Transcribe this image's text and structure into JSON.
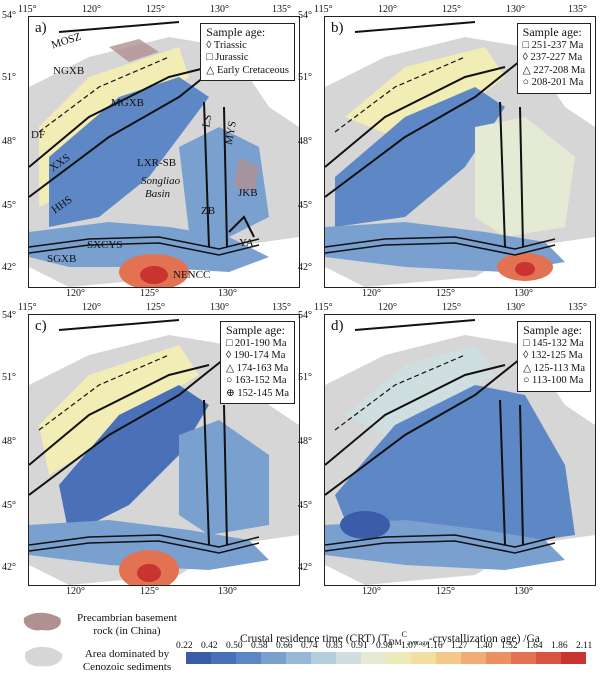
{
  "panels": [
    {
      "tag": "a)",
      "legend_title": "Sample age:",
      "legend_items": [
        "◊ Triassic",
        "□ Jurassic",
        "△ Early Cretaceous"
      ]
    },
    {
      "tag": "b)",
      "legend_title": "Sample age:",
      "legend_items": [
        "□ 251-237 Ma",
        "◊ 237-227 Ma",
        "△ 227-208 Ma",
        "○ 208-201 Ma"
      ]
    },
    {
      "tag": "c)",
      "legend_title": "Sample age:",
      "legend_items": [
        "□ 201-190 Ma",
        "◊ 190-174 Ma",
        "△ 174-163 Ma",
        "○ 163-152 Ma",
        "⊕ 152-145 Ma"
      ]
    },
    {
      "tag": "d)",
      "legend_title": "Sample age:",
      "legend_items": [
        "□ 145-132 Ma",
        "◊ 132-125 Ma",
        "△ 125-113 Ma",
        "○ 113-100 Ma"
      ]
    }
  ],
  "axes": {
    "top": [
      "115°",
      "120°",
      "125°",
      "130°",
      "135°"
    ],
    "bottom": [
      "120°",
      "125°",
      "130°"
    ],
    "left": [
      "54°",
      "51°",
      "48°",
      "45°",
      "42°"
    ],
    "right": [
      "51°",
      "48°",
      "45°",
      "42°"
    ]
  },
  "units": [
    "MOSZ",
    "NGXB",
    "DF",
    "MGXB",
    "XXS",
    "HHS",
    "LXR-SB",
    "Songliao",
    "Basin",
    "LS",
    "MYS",
    "ZB",
    "JKB",
    "SXCYS",
    "YA",
    "SGXB",
    "NENCC"
  ],
  "legend": {
    "precambrian": [
      "Precambrian basement",
      "rock (in China)"
    ],
    "cenozoic": [
      "Area dominated by",
      "Cenozoic sediments"
    ],
    "crt_title": "Crustal residence time (CRT) (T",
    "crt_sub": "DM",
    "crt_sup": "C",
    "crt_sub2": "average",
    "crt_tail": "-crystallization age) /Ga",
    "ticks": [
      "0.22",
      "0.42",
      "0.50",
      "0.58",
      "0.66",
      "0.74",
      "0.83",
      "0.91",
      "0.98",
      "1.07",
      "1.16",
      "1.27",
      "1.40",
      "1.52",
      "1.64",
      "1.86",
      "2.11"
    ],
    "colors": [
      "#3b5ca8",
      "#4a70b8",
      "#5d86c4",
      "#7ba0cf",
      "#98b8d8",
      "#b5cedf",
      "#cfdfe0",
      "#e4ead4",
      "#eeeab8",
      "#f2dea0",
      "#f3c888",
      "#f0ad74",
      "#eb9062",
      "#e37252",
      "#d75443",
      "#c93431"
    ]
  }
}
